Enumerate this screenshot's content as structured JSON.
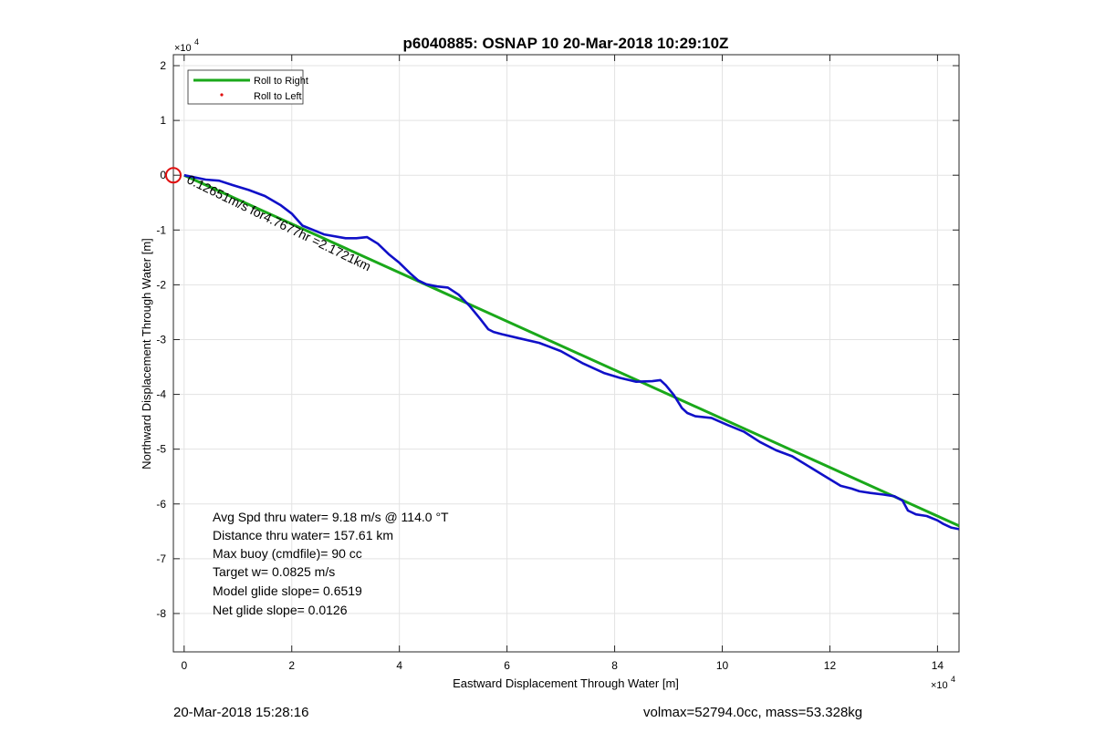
{
  "chart_data": {
    "type": "line",
    "title": "p6040885: OSNAP 10 20-Mar-2018 10:29:10Z",
    "xlabel": "Eastward Displacement Through Water [m]",
    "ylabel": "Northward Displacement Through Water [m]",
    "x_exponent": "×10",
    "y_exponent": "×10",
    "exponent_power": "4",
    "xlim": [
      -2000,
      144000
    ],
    "ylim": [
      -87000,
      22000
    ],
    "xticks": [
      0,
      20000,
      40000,
      60000,
      80000,
      100000,
      120000,
      140000
    ],
    "xtick_labels": [
      "0",
      "2",
      "4",
      "6",
      "8",
      "10",
      "12",
      "14"
    ],
    "yticks": [
      20000,
      10000,
      0,
      -10000,
      -20000,
      -30000,
      -40000,
      -50000,
      -60000,
      -70000,
      -80000
    ],
    "ytick_labels": [
      "2",
      "1",
      "0",
      "-1",
      "-2",
      "-3",
      "-4",
      "-5",
      "-6",
      "-7",
      "-8"
    ],
    "grid": true,
    "legend_position": "top-left",
    "colors": {
      "roll_right": "#1aa81a",
      "roll_left": "#e01010",
      "track": "#1010c8",
      "start_marker": "#e01010"
    },
    "series": [
      {
        "name": "Roll to Right",
        "style": "line",
        "color": "#1aa81a",
        "x": [
          0,
          144000
        ],
        "y": [
          0,
          -64000
        ]
      },
      {
        "name": "Roll to Left",
        "style": "points",
        "color": "#e01010",
        "x": [],
        "y": []
      },
      {
        "name": "",
        "style": "line",
        "color": "#1010c8",
        "x": [
          0,
          4000,
          6500,
          9000,
          12000,
          15000,
          18000,
          20000,
          22000,
          26000,
          30000,
          32000,
          33000,
          34000,
          36000,
          38000,
          40000,
          42000,
          43500,
          45000,
          47000,
          49000,
          51000,
          53000,
          55000,
          56500,
          57500,
          59000,
          62000,
          66000,
          70000,
          74000,
          78000,
          81000,
          84000,
          87000,
          88500,
          89500,
          91000,
          92500,
          93500,
          95000,
          98000,
          101000,
          104000,
          107000,
          110000,
          113000,
          116000,
          119000,
          122000,
          124000,
          125500,
          127500,
          130000,
          132000,
          133500,
          134500,
          136000,
          138000,
          140000,
          141000,
          142500,
          144000
        ],
        "y": [
          0,
          -800,
          -1000,
          -1800,
          -2700,
          -3800,
          -5500,
          -7000,
          -9200,
          -10800,
          -11500,
          -11500,
          -11400,
          -11300,
          -12500,
          -14400,
          -16000,
          -17900,
          -19200,
          -19900,
          -20300,
          -20500,
          -21800,
          -23800,
          -26200,
          -28100,
          -28600,
          -29000,
          -29700,
          -30600,
          -32100,
          -34300,
          -36100,
          -37000,
          -37700,
          -37600,
          -37400,
          -38300,
          -40100,
          -42500,
          -43400,
          -44000,
          -44300,
          -45600,
          -46800,
          -48700,
          -50200,
          -51300,
          -53100,
          -54900,
          -56700,
          -57200,
          -57700,
          -58000,
          -58300,
          -58600,
          -59400,
          -61200,
          -61900,
          -62200,
          -63000,
          -63600,
          -64300,
          -64600
        ]
      }
    ],
    "track_annotation": "0.12651m/s for4.7677hr =2.1721km",
    "start_marker": {
      "x": -2000,
      "y": 0
    }
  },
  "stats": [
    "Avg Spd thru water=  9.18 m/s @ 114.0 °T",
    "Distance thru water= 157.61 km",
    "Max buoy (cmdfile)= 90 cc",
    "Target w= 0.0825 m/s",
    "Model glide slope= 0.6519",
    "Net glide slope= 0.0126"
  ],
  "footer": {
    "timestamp": "20-Mar-2018 15:28:16",
    "summary": "volmax=52794.0cc, mass=53.328kg"
  }
}
